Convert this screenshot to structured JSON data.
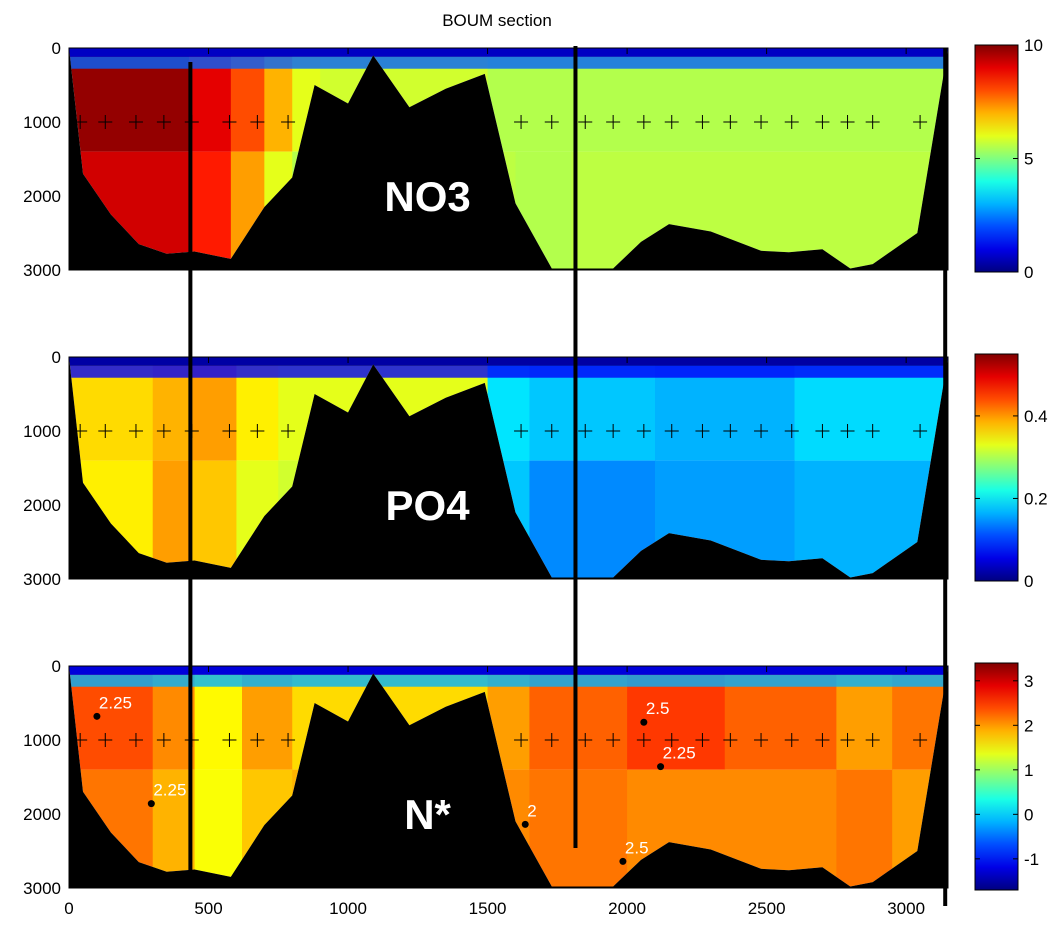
{
  "chart_data": {
    "type": "heatmap",
    "title": "BOUM section",
    "x_ticks": [
      "0",
      "500",
      "1000",
      "1500",
      "2000",
      "2500",
      "3000"
    ],
    "y_ticks": [
      "0",
      "1000",
      "2000",
      "3000"
    ],
    "xlim": [
      0,
      3150
    ],
    "ylim": [
      0,
      3000
    ],
    "panels": [
      {
        "label": "NO3",
        "colorbar": {
          "min": 0,
          "max": 10,
          "ticks": [
            "0",
            "5",
            "10"
          ],
          "tick_values": [
            0,
            5,
            10
          ]
        },
        "value_notes": []
      },
      {
        "label": "PO4",
        "colorbar": {
          "min": 0,
          "max": 0.55,
          "ticks": [
            "0",
            "0.2",
            "0.4"
          ],
          "tick_values": [
            0,
            0.2,
            0.4
          ]
        },
        "value_notes": []
      },
      {
        "label": "N*",
        "colorbar": {
          "min": -1.7,
          "max": 3.4,
          "ticks": [
            "-1",
            "0",
            "1",
            "2",
            "3"
          ],
          "tick_values": [
            -1,
            0,
            1,
            2,
            3
          ]
        },
        "value_notes": [
          {
            "text": "2.25",
            "x": 100,
            "y": 680
          },
          {
            "text": "2.25",
            "x": 295,
            "y": 1860
          },
          {
            "text": "2",
            "x": 1635,
            "y": 2140
          },
          {
            "text": "2.5",
            "x": 2060,
            "y": 760
          },
          {
            "text": "2.25",
            "x": 2120,
            "y": 1360
          },
          {
            "text": "2.5",
            "x": 1985,
            "y": 2640
          }
        ]
      }
    ],
    "station_depth": 1000,
    "stations_x": [
      40,
      130,
      240,
      340,
      440,
      575,
      675,
      785,
      1620,
      1730,
      1850,
      1950,
      2060,
      2160,
      2270,
      2370,
      2480,
      2590,
      2700,
      2790,
      2880,
      3050
    ],
    "vertical_lines_x": [
      435,
      1815,
      3140
    ],
    "topography": [
      [
        0,
        0
      ],
      [
        50,
        1700
      ],
      [
        150,
        2250
      ],
      [
        250,
        2650
      ],
      [
        350,
        2780
      ],
      [
        450,
        2750
      ],
      [
        580,
        2850
      ],
      [
        700,
        2150
      ],
      [
        800,
        1750
      ],
      [
        880,
        500
      ],
      [
        1000,
        750
      ],
      [
        1090,
        100
      ],
      [
        1220,
        800
      ],
      [
        1350,
        550
      ],
      [
        1490,
        350
      ],
      [
        1600,
        2100
      ],
      [
        1730,
        2980
      ],
      [
        1810,
        2980
      ],
      [
        1950,
        2980
      ],
      [
        2050,
        2620
      ],
      [
        2150,
        2380
      ],
      [
        2300,
        2480
      ],
      [
        2480,
        2740
      ],
      [
        2580,
        2760
      ],
      [
        2700,
        2720
      ],
      [
        2800,
        2980
      ],
      [
        2880,
        2920
      ],
      [
        3040,
        2500
      ],
      [
        3150,
        0
      ]
    ]
  }
}
